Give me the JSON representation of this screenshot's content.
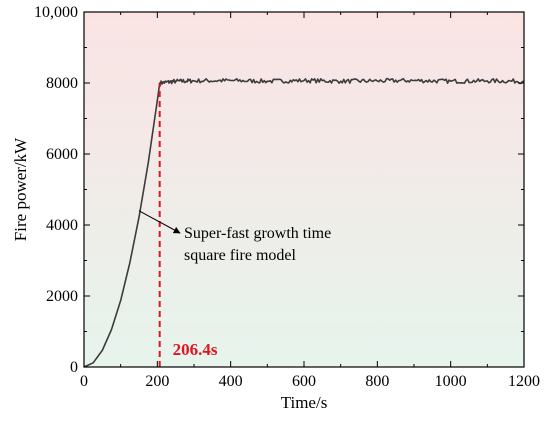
{
  "chart_data": {
    "type": "line",
    "title": "",
    "xlabel": "Time/s",
    "ylabel": "Fire power/kW",
    "xlim": [
      0,
      1200
    ],
    "ylim": [
      0,
      10000
    ],
    "x_ticks": [
      0,
      200,
      400,
      600,
      800,
      1000,
      1200
    ],
    "x_tick_labels": [
      "0",
      "200",
      "400",
      "600",
      "800",
      "1000",
      "1200"
    ],
    "y_ticks": [
      0,
      2000,
      4000,
      6000,
      8000,
      10000
    ],
    "y_tick_labels": [
      "0",
      "2000",
      "4000",
      "6000",
      "8000",
      "10,000"
    ],
    "grid": false,
    "legend": "none",
    "series": [
      {
        "color": "#3c3c3c",
        "x": [
          0,
          25,
          50,
          75,
          100,
          125,
          150,
          175,
          200,
          206.4,
          250,
          300,
          400,
          500,
          600,
          700,
          800,
          900,
          1000,
          1100,
          1200
        ],
        "y": [
          0,
          117,
          469,
          1055,
          1876,
          2931,
          4220,
          5744,
          7502,
          8000,
          8050,
          8060,
          8070,
          8050,
          8070,
          8050,
          8060,
          8070,
          8050,
          8060,
          8050
        ]
      }
    ],
    "marker_line": {
      "x": 206.4,
      "y": 8000,
      "label": "206.4s",
      "color": "#e0141e"
    },
    "annotation": {
      "lines": [
        "Super-fast growth time",
        "square fire model"
      ],
      "arrow_target": {
        "x": 150,
        "y": 4400
      }
    },
    "background_gradient": {
      "top": "#fbe3e4",
      "bottom": "#e6f4ec"
    }
  }
}
